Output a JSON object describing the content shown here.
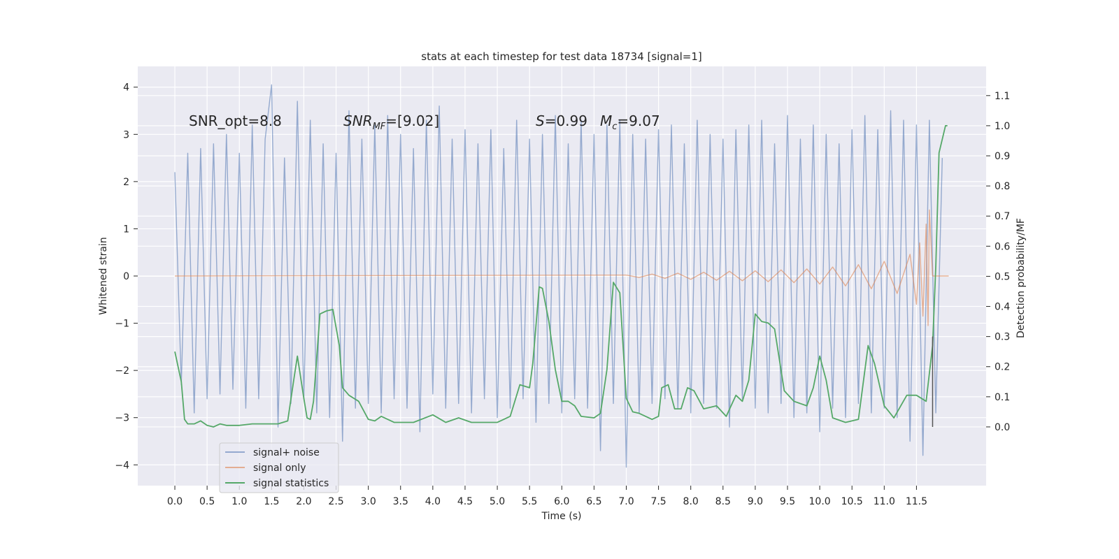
{
  "chart_data": {
    "type": "line",
    "title": "stats at each timestep for test data 18734 [signal=1]",
    "xlabel": "Time (s)",
    "ylabel": "Whitened strain",
    "y2label": "Detection probability/MF",
    "xlim": [
      -0.575,
      12.58
    ],
    "ylim": [
      -4.44,
      4.44
    ],
    "y2lim": [
      -0.195,
      1.197
    ],
    "xticks": [
      {
        "value": 0,
        "label": "0.0"
      },
      0.5,
      {
        "value": 1,
        "label": "1.0"
      },
      1.5,
      {
        "value": 2,
        "label": "2.0"
      },
      2.5,
      {
        "value": 3,
        "label": "3.0"
      },
      3.5,
      {
        "value": 4,
        "label": "4.0"
      },
      4.5,
      {
        "value": 5,
        "label": "5.0"
      },
      5.5,
      {
        "value": 6,
        "label": "6.0"
      },
      6.5,
      {
        "value": 7,
        "label": "7.0"
      },
      7.5,
      {
        "value": 8,
        "label": "8.0"
      },
      8.5,
      {
        "value": 9,
        "label": "9.0"
      },
      9.5,
      {
        "value": 10,
        "label": "10.0"
      },
      10.5,
      {
        "value": 11,
        "label": "11.0"
      },
      11.5
    ],
    "yticks": [
      {
        "value": -4,
        "label": "−4"
      },
      {
        "value": -3,
        "label": "−3"
      },
      {
        "value": -2,
        "label": "−2"
      },
      {
        "value": -1,
        "label": "−1"
      },
      0,
      1,
      2,
      3,
      4
    ],
    "y2ticks": [
      {
        "value": 0,
        "label": "0.0"
      },
      0.1,
      0.2,
      0.3,
      0.4,
      0.5,
      0.6,
      0.7,
      0.8,
      0.9,
      {
        "value": 1,
        "label": "1.0"
      },
      1.1
    ],
    "grid": true,
    "legend": "lower left",
    "annotations": [
      "SNR_opt=8.8",
      {
        "base": "SNR",
        "sub": "MF",
        "rest": "=[9.02]"
      },
      {
        "base": "S",
        "rest": "=0.99"
      },
      {
        "base": "M",
        "sub": "c",
        "rest": "=9.07"
      }
    ],
    "markers": [
      {
        "x": 11.75,
        "y2": [
          0,
          0.3
        ],
        "color": "#555555"
      }
    ],
    "series": [
      {
        "name": "signal+ noise",
        "color": "#4c72b0",
        "opacity": 0.55,
        "x": [
          0.0,
          0.1,
          0.2,
          0.3,
          0.4,
          0.5,
          0.6,
          0.7,
          0.8,
          0.9,
          1.0,
          1.1,
          1.2,
          1.3,
          1.4,
          1.5,
          1.6,
          1.7,
          1.8,
          1.9,
          2.0,
          2.1,
          2.2,
          2.3,
          2.4,
          2.5,
          2.6,
          2.7,
          2.8,
          2.9,
          3.0,
          3.1,
          3.2,
          3.3,
          3.4,
          3.5,
          3.6,
          3.7,
          3.8,
          3.9,
          4.0,
          4.1,
          4.2,
          4.3,
          4.4,
          4.5,
          4.6,
          4.7,
          4.8,
          4.9,
          5.0,
          5.1,
          5.2,
          5.3,
          5.4,
          5.5,
          5.6,
          5.7,
          5.8,
          5.9,
          6.0,
          6.1,
          6.2,
          6.3,
          6.4,
          6.5,
          6.6,
          6.7,
          6.8,
          6.9,
          7.0,
          7.1,
          7.2,
          7.3,
          7.4,
          7.5,
          7.6,
          7.7,
          7.8,
          7.9,
          8.0,
          8.1,
          8.2,
          8.3,
          8.4,
          8.5,
          8.6,
          8.7,
          8.8,
          8.9,
          9.0,
          9.1,
          9.2,
          9.3,
          9.4,
          9.5,
          9.6,
          9.7,
          9.8,
          9.9,
          10.0,
          10.1,
          10.2,
          10.3,
          10.4,
          10.5,
          10.6,
          10.7,
          10.8,
          10.9,
          11.0,
          11.1,
          11.2,
          11.3,
          11.4,
          11.5,
          11.6,
          11.7,
          11.8,
          11.9
        ],
        "values": [
          2.2,
          -2.3,
          2.6,
          -2.9,
          2.7,
          -2.6,
          2.8,
          -2.5,
          3.0,
          -2.4,
          2.6,
          -2.8,
          3.2,
          -2.6,
          2.9,
          4.05,
          -3.2,
          2.5,
          -2.7,
          3.7,
          -2.6,
          3.3,
          -2.9,
          2.8,
          -3.0,
          2.6,
          -3.5,
          3.5,
          -2.8,
          2.9,
          -2.7,
          3.2,
          -2.9,
          3.4,
          -2.6,
          3.0,
          -2.8,
          2.7,
          -3.3,
          3.3,
          -2.5,
          3.6,
          -2.8,
          2.9,
          -2.7,
          3.1,
          -2.9,
          2.8,
          -2.6,
          3.1,
          -3.0,
          2.7,
          -2.8,
          3.3,
          -2.6,
          2.9,
          -3.1,
          3.0,
          -2.7,
          3.4,
          -2.9,
          2.8,
          -2.6,
          3.3,
          -2.8,
          3.0,
          -3.7,
          3.2,
          -2.7,
          3.3,
          -4.05,
          3.0,
          -2.9,
          2.9,
          -2.7,
          3.1,
          -2.6,
          3.2,
          -2.8,
          2.8,
          -2.9,
          3.3,
          -2.7,
          3.0,
          -2.8,
          2.9,
          -3.2,
          3.1,
          -2.6,
          3.2,
          -2.8,
          3.3,
          -2.9,
          2.8,
          -2.7,
          3.4,
          -3.0,
          2.9,
          -2.9,
          3.2,
          -3.3,
          3.0,
          -2.8,
          2.8,
          -3.0,
          3.1,
          -2.7,
          3.4,
          -2.9,
          3.1,
          -2.8,
          3.5,
          -3.0,
          3.3,
          -3.5,
          3.2,
          -3.8,
          3.3,
          -2.9,
          2.5
        ]
      },
      {
        "name": "signal only",
        "color": "#dd8452",
        "opacity": 0.6,
        "x": [
          0.0,
          7.0,
          7.2,
          7.4,
          7.6,
          7.8,
          8.0,
          8.2,
          8.4,
          8.6,
          8.8,
          9.0,
          9.2,
          9.4,
          9.6,
          9.8,
          10.0,
          10.2,
          10.4,
          10.6,
          10.8,
          11.0,
          11.2,
          11.4,
          11.5,
          11.55,
          11.6,
          11.65,
          11.68,
          11.7,
          11.75,
          12.0
        ],
        "values": [
          0.0,
          0.02,
          -0.03,
          0.04,
          -0.05,
          0.06,
          -0.07,
          0.08,
          -0.09,
          0.1,
          -0.1,
          0.11,
          -0.12,
          0.13,
          -0.14,
          0.15,
          -0.17,
          0.19,
          -0.21,
          0.24,
          -0.27,
          0.31,
          -0.37,
          0.46,
          -0.6,
          0.7,
          -0.85,
          1.1,
          -1.05,
          1.4,
          0.0,
          0.0
        ]
      },
      {
        "name": "signal statistics",
        "color": "#55a868",
        "opacity": 1,
        "axis": "y2",
        "x": [
          0.0,
          0.1,
          0.15,
          0.2,
          0.3,
          0.4,
          0.5,
          0.6,
          0.7,
          0.8,
          1.0,
          1.2,
          1.4,
          1.6,
          1.75,
          1.85,
          1.9,
          2.0,
          2.05,
          2.1,
          2.15,
          2.25,
          2.35,
          2.45,
          2.55,
          2.6,
          2.7,
          2.85,
          3.0,
          3.1,
          3.2,
          3.4,
          3.7,
          4.0,
          4.2,
          4.4,
          4.6,
          4.8,
          5.0,
          5.1,
          5.2,
          5.35,
          5.5,
          5.55,
          5.65,
          5.7,
          5.8,
          5.9,
          6.0,
          6.1,
          6.2,
          6.3,
          6.5,
          6.6,
          6.7,
          6.8,
          6.9,
          7.0,
          7.1,
          7.2,
          7.4,
          7.5,
          7.55,
          7.65,
          7.75,
          7.85,
          7.95,
          8.05,
          8.2,
          8.4,
          8.55,
          8.7,
          8.8,
          8.9,
          9.0,
          9.1,
          9.2,
          9.3,
          9.45,
          9.6,
          9.8,
          9.9,
          10.0,
          10.1,
          10.2,
          10.4,
          10.6,
          10.75,
          10.85,
          11.0,
          11.15,
          11.35,
          11.5,
          11.65,
          11.75,
          11.8,
          11.85,
          11.95,
          11.98
        ],
        "values": [
          0.25,
          0.15,
          0.025,
          0.01,
          0.01,
          0.02,
          0.005,
          0.0,
          0.01,
          0.005,
          0.005,
          0.01,
          0.01,
          0.01,
          0.02,
          0.165,
          0.235,
          0.095,
          0.03,
          0.025,
          0.085,
          0.375,
          0.385,
          0.39,
          0.27,
          0.13,
          0.105,
          0.085,
          0.025,
          0.02,
          0.035,
          0.015,
          0.015,
          0.04,
          0.015,
          0.03,
          0.015,
          0.015,
          0.015,
          0.025,
          0.035,
          0.14,
          0.13,
          0.21,
          0.465,
          0.46,
          0.35,
          0.19,
          0.085,
          0.085,
          0.07,
          0.035,
          0.03,
          0.045,
          0.19,
          0.48,
          0.445,
          0.095,
          0.05,
          0.045,
          0.025,
          0.035,
          0.13,
          0.14,
          0.06,
          0.06,
          0.13,
          0.12,
          0.06,
          0.07,
          0.035,
          0.105,
          0.085,
          0.155,
          0.375,
          0.35,
          0.345,
          0.325,
          0.12,
          0.085,
          0.07,
          0.13,
          0.235,
          0.155,
          0.03,
          0.015,
          0.025,
          0.27,
          0.21,
          0.07,
          0.03,
          0.105,
          0.105,
          0.085,
          0.27,
          0.535,
          0.91,
          1.0,
          1.0
        ]
      }
    ]
  }
}
